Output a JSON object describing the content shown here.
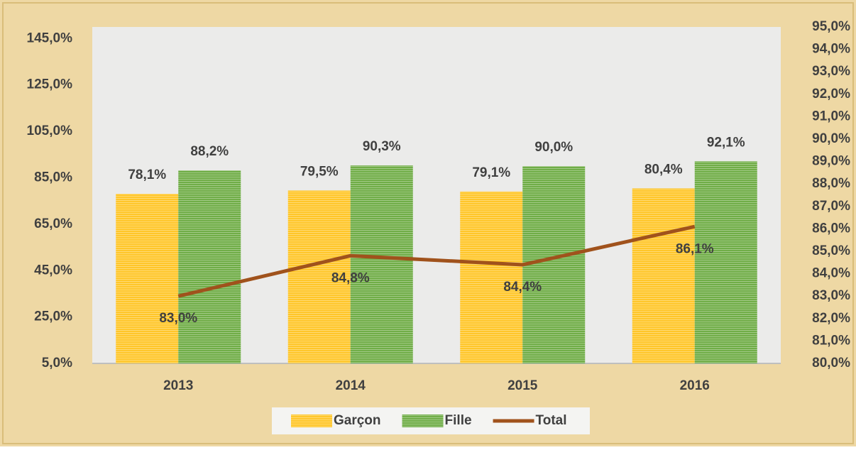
{
  "chart_data": {
    "type": "bar",
    "categories": [
      "2013",
      "2014",
      "2015",
      "2016"
    ],
    "series": [
      {
        "name": "Garçon",
        "color": "#ffc629",
        "values": [
          78.1,
          79.5,
          79.1,
          80.4
        ],
        "value_labels": [
          "78,1%",
          "79,5%",
          "79,1%",
          "80,4%"
        ]
      },
      {
        "name": "Fille",
        "color": "#70ad47",
        "values": [
          88.2,
          90.3,
          90.0,
          92.1
        ],
        "value_labels": [
          "88,2%",
          "90,3%",
          "90,0%",
          "92,1%"
        ]
      },
      {
        "name": "Total",
        "type": "line",
        "axis": "y2",
        "color": "#a0521c",
        "values": [
          83.0,
          84.8,
          84.4,
          86.1
        ],
        "value_labels": [
          "83,0%",
          "84,8%",
          "84,4%",
          "86,1%"
        ]
      }
    ],
    "ylim": [
      5,
      150
    ],
    "yticks": [
      {
        "value": 5,
        "label": "5,0%"
      },
      {
        "value": 25,
        "label": "25,0%"
      },
      {
        "value": 45,
        "label": "45,0%"
      },
      {
        "value": 65,
        "label": "65,0%"
      },
      {
        "value": 85,
        "label": "85,0%"
      },
      {
        "value": 105,
        "label": "105,0%"
      },
      {
        "value": 125,
        "label": "125,0%"
      },
      {
        "value": 145,
        "label": "145,0%"
      }
    ],
    "y2lim": [
      80,
      95
    ],
    "y2ticks": [
      {
        "value": 80,
        "label": "80,0%"
      },
      {
        "value": 81,
        "label": "81,0%"
      },
      {
        "value": 82,
        "label": "82,0%"
      },
      {
        "value": 83,
        "label": "83,0%"
      },
      {
        "value": 84,
        "label": "84,0%"
      },
      {
        "value": 85,
        "label": "85,0%"
      },
      {
        "value": 86,
        "label": "86,0%"
      },
      {
        "value": 87,
        "label": "87,0%"
      },
      {
        "value": 88,
        "label": "88,0%"
      },
      {
        "value": 89,
        "label": "89,0%"
      },
      {
        "value": 90,
        "label": "90,0%"
      },
      {
        "value": 91,
        "label": "91,0%"
      },
      {
        "value": 92,
        "label": "92,0%"
      },
      {
        "value": 93,
        "label": "93,0%"
      },
      {
        "value": 94,
        "label": "94,0%"
      },
      {
        "value": 95,
        "label": "95,0%"
      }
    ]
  }
}
